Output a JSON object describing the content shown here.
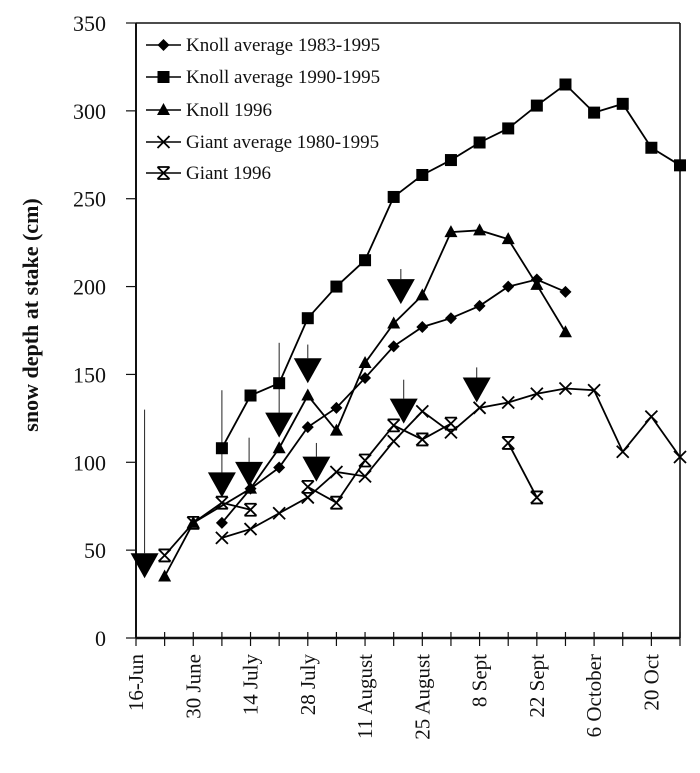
{
  "chart_data": {
    "type": "line",
    "title": "",
    "xlabel": "",
    "ylabel": "snow depth at stake (cm)",
    "ylim": [
      0,
      350
    ],
    "yticks": [
      0,
      50,
      100,
      150,
      200,
      250,
      300,
      350
    ],
    "x_unit": "weeks since 16 June",
    "xlim": [
      0,
      19
    ],
    "x_minor_ticks_weeks": [
      0,
      1,
      2,
      3,
      4,
      5,
      6,
      7,
      8,
      9,
      10,
      11,
      12,
      13,
      14,
      15,
      16,
      17,
      18,
      19
    ],
    "xtick_labels": [
      {
        "week": 0,
        "label": "16-Jun"
      },
      {
        "week": 2,
        "label": "30 June"
      },
      {
        "week": 4,
        "label": "14 July"
      },
      {
        "week": 6,
        "label": "28 July"
      },
      {
        "week": 8,
        "label": "11 August"
      },
      {
        "week": 10,
        "label": "25 August"
      },
      {
        "week": 12,
        "label": "8 Sept"
      },
      {
        "week": 14,
        "label": "22 Sept"
      },
      {
        "week": 16,
        "label": "6 October"
      },
      {
        "week": 18,
        "label": "20 Oct"
      }
    ],
    "grid": false,
    "legend_position": "top-left",
    "series": [
      {
        "name": "Knoll average 1983-1995",
        "marker": "diamond",
        "points": [
          [
            3,
            65.5
          ],
          [
            4,
            85
          ],
          [
            5,
            97
          ],
          [
            6,
            120
          ],
          [
            7,
            131
          ],
          [
            8,
            148
          ],
          [
            9,
            166
          ],
          [
            10,
            177
          ],
          [
            11,
            182
          ],
          [
            12,
            189
          ],
          [
            13,
            200
          ],
          [
            14,
            204
          ],
          [
            15,
            197
          ]
        ]
      },
      {
        "name": "Knoll average 1990-1995",
        "marker": "square",
        "points": [
          [
            3,
            108
          ],
          [
            4,
            138
          ],
          [
            5,
            145
          ],
          [
            6,
            182
          ],
          [
            7,
            200
          ],
          [
            8,
            215
          ],
          [
            9,
            251
          ],
          [
            10,
            263.5
          ],
          [
            11,
            272
          ],
          [
            12,
            282
          ],
          [
            13,
            290
          ],
          [
            14,
            303
          ],
          [
            15,
            315
          ],
          [
            16,
            299
          ],
          [
            17,
            304
          ],
          [
            18,
            279
          ],
          [
            19,
            269
          ]
        ]
      },
      {
        "name": "Knoll 1996",
        "marker": "triangle",
        "points": [
          [
            1,
            35
          ],
          [
            2,
            65.5
          ],
          [
            4,
            85
          ],
          [
            5,
            108
          ],
          [
            6,
            138
          ],
          [
            7,
            118
          ],
          [
            8,
            156.5
          ],
          [
            9,
            179
          ],
          [
            10,
            195
          ],
          [
            11,
            231
          ],
          [
            12,
            232
          ],
          [
            13,
            227
          ],
          [
            14,
            201
          ],
          [
            15,
            174
          ]
        ]
      },
      {
        "name": "Giant average 1980-1995",
        "marker": "x",
        "points": [
          [
            3,
            57
          ],
          [
            4,
            62
          ],
          [
            5,
            71
          ],
          [
            6,
            80
          ],
          [
            7,
            94.5
          ],
          [
            8,
            92
          ],
          [
            9,
            112
          ],
          [
            10,
            129
          ],
          [
            11,
            117
          ],
          [
            12,
            131
          ],
          [
            13,
            134
          ],
          [
            14,
            139
          ],
          [
            15,
            142
          ],
          [
            16,
            141
          ],
          [
            17,
            106
          ],
          [
            18,
            126
          ],
          [
            19,
            103
          ]
        ]
      },
      {
        "name": "Giant 1996",
        "marker": "star",
        "segments": [
          [
            [
              1,
              47
            ],
            [
              2,
              65.5
            ],
            [
              3,
              77
            ],
            [
              4,
              73
            ]
          ],
          [
            [
              6,
              86
            ],
            [
              7,
              77
            ],
            [
              8,
              101
            ],
            [
              9,
              121
            ],
            [
              10,
              113
            ],
            [
              11,
              122
            ]
          ],
          [
            [
              13,
              111
            ],
            [
              14,
              80
            ]
          ]
        ]
      }
    ],
    "annotations": {
      "description": "large downward-pointing triangles with vertical lines (events)",
      "markers": [
        {
          "week": 0.3,
          "value": 34,
          "line_top_value": 130
        },
        {
          "week": 3.0,
          "value": 80,
          "line_top_value": 141
        },
        {
          "week": 3.95,
          "value": 86,
          "line_top_value": 114
        },
        {
          "week": 5.0,
          "value": 114,
          "line_top_value": 168
        },
        {
          "week": 6.0,
          "value": 145,
          "line_top_value": 167
        },
        {
          "week": 6.3,
          "value": 89,
          "line_top_value": 111
        },
        {
          "week": 9.25,
          "value": 190,
          "line_top_value": 210
        },
        {
          "week": 9.35,
          "value": 122,
          "line_top_value": 147
        },
        {
          "week": 11.9,
          "value": 134,
          "line_top_value": 154
        }
      ]
    }
  }
}
